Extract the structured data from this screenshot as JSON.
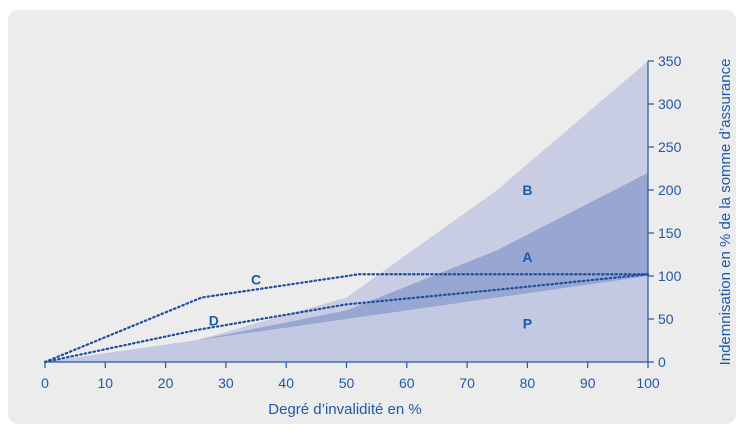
{
  "chart_data": {
    "type": "area",
    "title": "",
    "xlabel": "Degré d’invalidité en %",
    "ylabel": "Indemnisation en % de la somme d’assurance",
    "xlim": [
      0,
      100
    ],
    "ylim": [
      0,
      350
    ],
    "x_ticks": [
      "0",
      "10",
      "20",
      "30",
      "40",
      "50",
      "60",
      "70",
      "80",
      "90",
      "100"
    ],
    "y_ticks": [
      "0",
      "50",
      "100",
      "150",
      "200",
      "250",
      "300",
      "350"
    ],
    "y_axis_position": "right",
    "grid": false,
    "colors": {
      "panel": "#ececec",
      "axis": "#1f5aa6",
      "B": "#c9cde4",
      "A": "#98a6d2",
      "P": "#c4c9e3",
      "lines": "#1f4f9a"
    },
    "areas": [
      {
        "label": "B",
        "points": [
          [
            0,
            0
          ],
          [
            25,
            25
          ],
          [
            50,
            75
          ],
          [
            75,
            200
          ],
          [
            100,
            350
          ]
        ]
      },
      {
        "label": "A",
        "points": [
          [
            0,
            0
          ],
          [
            25,
            25
          ],
          [
            50,
            60
          ],
          [
            75,
            130
          ],
          [
            100,
            220
          ]
        ]
      },
      {
        "label": "P",
        "points": [
          [
            0,
            0
          ],
          [
            25,
            25
          ],
          [
            50,
            50
          ],
          [
            75,
            75
          ],
          [
            100,
            100
          ]
        ]
      }
    ],
    "lines": [
      {
        "label": "C",
        "style": "dotted",
        "points": [
          [
            0,
            0
          ],
          [
            26,
            75
          ],
          [
            52,
            102
          ],
          [
            100,
            102
          ]
        ]
      },
      {
        "label": "D",
        "style": "dotted",
        "points": [
          [
            0,
            0
          ],
          [
            25,
            37
          ],
          [
            50,
            67
          ],
          [
            75,
            84
          ],
          [
            100,
            102
          ]
        ]
      }
    ],
    "region_labels": [
      {
        "text": "B",
        "x": 80,
        "y": 200
      },
      {
        "text": "A",
        "x": 80,
        "y": 122
      },
      {
        "text": "P",
        "x": 80,
        "y": 45
      },
      {
        "text": "C",
        "x": 35,
        "y": 96
      },
      {
        "text": "D",
        "x": 28,
        "y": 48
      }
    ]
  }
}
